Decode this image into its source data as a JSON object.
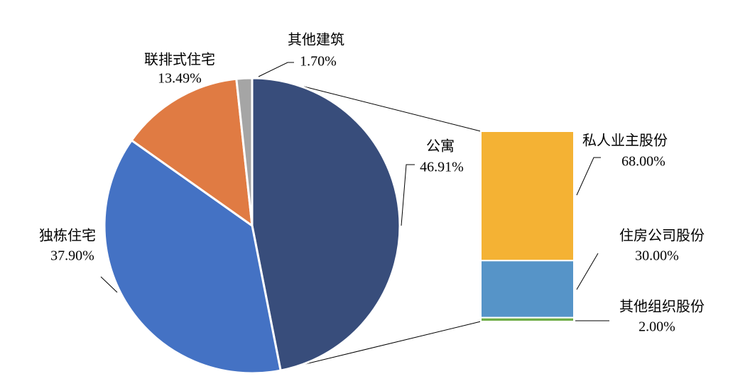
{
  "chart_data": [
    {
      "type": "pie",
      "categories": [
        "公寓",
        "独栋住宅",
        "联排式住宅",
        "其他建筑"
      ],
      "values": [
        46.91,
        37.9,
        13.49,
        1.7
      ],
      "value_labels": [
        "46.91%",
        "37.90%",
        "13.49%",
        "1.70%"
      ],
      "colors": [
        "#384d7b",
        "#4472c4",
        "#e07b43",
        "#a5a5a5"
      ]
    },
    {
      "type": "bar",
      "categories": [
        "私人业主股份",
        "住房公司股份",
        "其他组织股份"
      ],
      "values": [
        68.0,
        30.0,
        2.0
      ],
      "value_labels": [
        "68.00%",
        "30.00%",
        "2.00%"
      ],
      "colors": [
        "#f4b234",
        "#5694c8",
        "#70ad47"
      ]
    }
  ]
}
